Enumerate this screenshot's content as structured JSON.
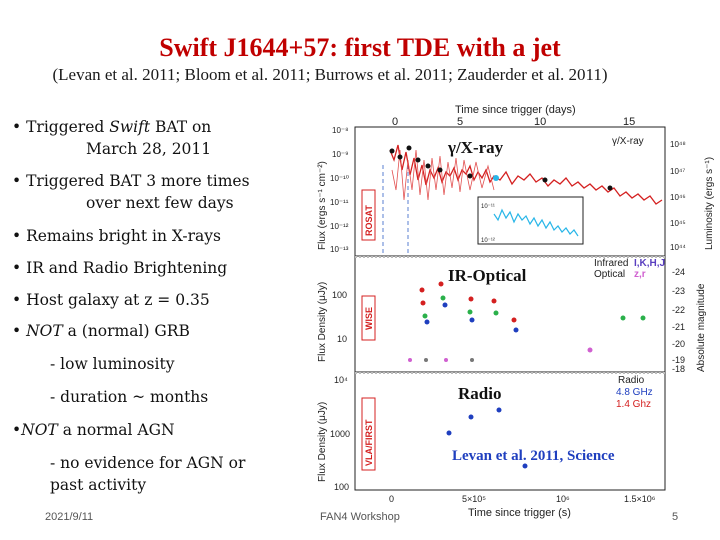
{
  "slide": {
    "title": "Swift J1644+57: first TDE with a jet",
    "subtitle": "(Levan et al. 2011; Bloom et al. 2011; Burrows et al. 2011; Zauderder et al. 2011)",
    "bullets": [
      {
        "pre": "• Triggered ",
        "em": "Swift",
        "post": " BAT on",
        "cont": "March 28, 2011"
      },
      {
        "text": "• Triggered BAT 3 more times",
        "cont": "over next few days"
      },
      {
        "text": "• Remains bright in X-rays"
      },
      {
        "text": "• IR and Radio Brightening"
      },
      {
        "text": "• Host galaxy at z = 0.35"
      },
      {
        "pre": "• ",
        "em": "NOT",
        "post": " a (normal) GRB"
      },
      {
        "text": "- low luminosity"
      },
      {
        "text": "- duration ~ months"
      },
      {
        "pre": "•",
        "em": "NOT",
        "post": " a normal AGN"
      },
      {
        "text": "- no evidence for AGN or",
        "cont": "past activity"
      }
    ],
    "footer": {
      "date": "2021/9/11",
      "event": "FAN4 Workshop",
      "page": "5"
    }
  },
  "figure": {
    "top_axis_label": "Time since trigger (days)",
    "top_ticks": [
      "0",
      "5",
      "10",
      "15"
    ],
    "bottom_axis_label": "Time since trigger (s)",
    "bottom_ticks": [
      "0",
      "5×10⁵",
      "10⁶",
      "1.5×10⁶"
    ],
    "panels": {
      "xray": {
        "label": "γ/X-ray",
        "corner_label": "γ/X-ray",
        "ylabel": "Flux (ergs s⁻¹ cm⁻²)",
        "yticks": [
          "10⁻⁸",
          "10⁻⁹",
          "10⁻¹⁰",
          "10⁻¹¹",
          "10⁻¹²",
          "10⁻¹³"
        ],
        "right_label": "Luminosity (ergs s⁻¹)",
        "right_ticks": [
          "10⁴⁸",
          "10⁴⁷",
          "10⁴⁶",
          "10⁴⁵",
          "10⁴⁴"
        ],
        "side_tag": "ROSAT",
        "inset_ticks": [
          "10⁻¹¹",
          "10⁻¹²"
        ],
        "colors": {
          "xray": "#d42020",
          "uv": "#29b6e8",
          "bat": "#111111"
        }
      },
      "ir": {
        "label": "IR-Optical",
        "legend_title": "Infrared",
        "legend_bands": "I,K,H,J",
        "legend_optical": "Optical",
        "legend_optical_bands": "z,r",
        "ylabel": "Flux Density (μJy)",
        "yticks": [
          "100",
          "10"
        ],
        "right_label": "Absolute magnitude",
        "right_ticks": [
          "-24",
          "-23",
          "-22",
          "-21",
          "-20",
          "-19",
          "-18"
        ],
        "side_tag": "WISE"
      },
      "radio": {
        "label": "Radio",
        "legend_title": "Radio",
        "legend_items": [
          "4.8 GHz",
          "1.4 Ghz"
        ],
        "ylabel": "Flux Density (μJy)",
        "yticks": [
          "10⁴",
          "1000",
          "100"
        ],
        "side_tag": "VLA/FIRST",
        "citation": "Levan et al. 2011, Science",
        "colors": {
          "ghz48": "#1f3fbf",
          "ghz14": "#d42020"
        }
      }
    }
  }
}
